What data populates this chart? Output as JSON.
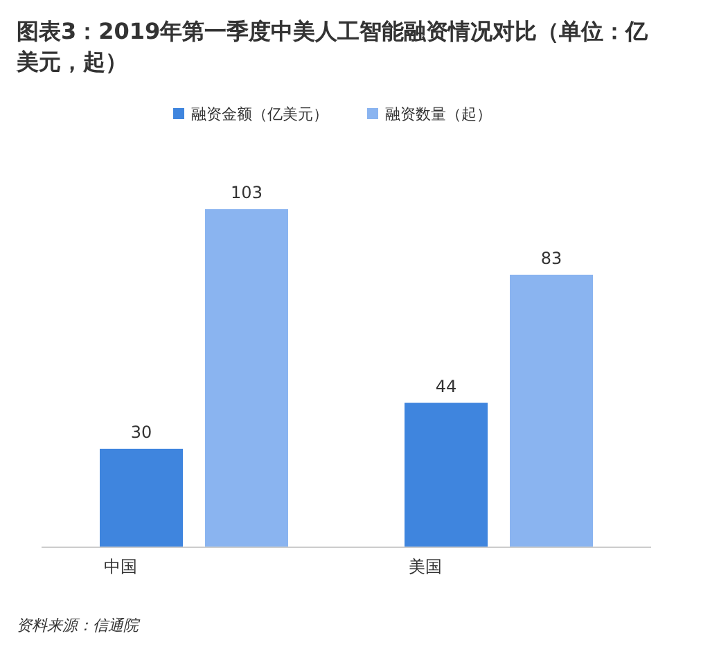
{
  "chart_data": {
    "type": "bar",
    "title": "图表3：2019年第一季度中美人工智能融资情况对比（单位：亿美元，起）",
    "categories": [
      "中国",
      "美国"
    ],
    "series": [
      {
        "name": "融资金额（亿美元）",
        "color": "#3f85de",
        "values": [
          30,
          44
        ]
      },
      {
        "name": "融资数量（起）",
        "color": "#8ab4f0",
        "values": [
          103,
          83
        ]
      }
    ],
    "data_labels": true,
    "legend": "top",
    "annotations": [
      "资料来源：信通院"
    ]
  }
}
